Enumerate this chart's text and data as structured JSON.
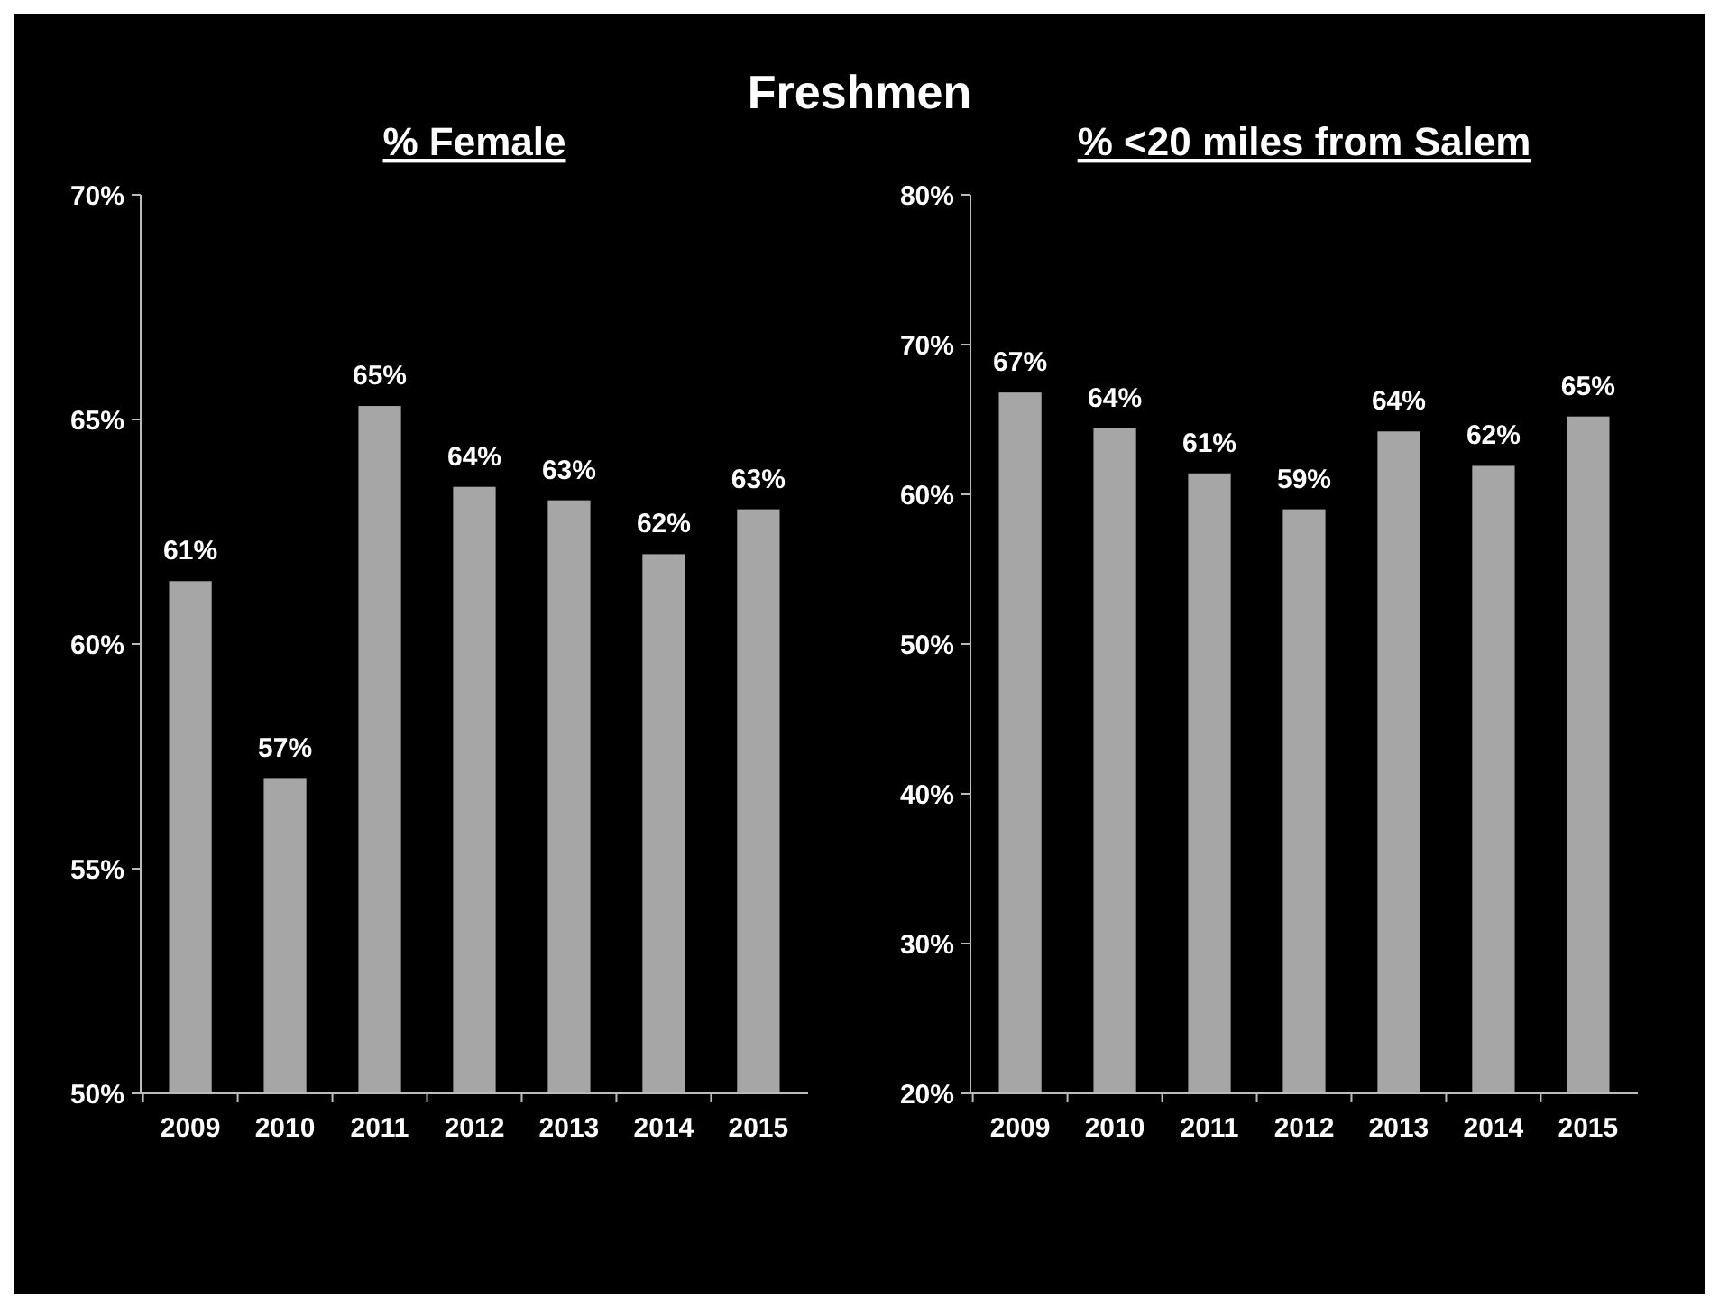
{
  "chart_data": [
    {
      "type": "other",
      "title": "Freshmen"
    },
    {
      "type": "bar",
      "title": "% Female",
      "categories": [
        "2009",
        "2010",
        "2011",
        "2012",
        "2013",
        "2014",
        "2015"
      ],
      "values": [
        61.4,
        57.0,
        65.3,
        63.5,
        63.2,
        62.0,
        63.0
      ],
      "value_labels": [
        "61%",
        "57%",
        "65%",
        "64%",
        "63%",
        "62%",
        "63%"
      ],
      "color": "#a6a6a6",
      "ylim": [
        50,
        70
      ],
      "yticks": [
        {
          "value": 50,
          "label": "50%"
        },
        {
          "value": 55,
          "label": "55%"
        },
        {
          "value": 60,
          "label": "60%"
        },
        {
          "value": 65,
          "label": "65%"
        },
        {
          "value": 70,
          "label": "70%"
        }
      ]
    },
    {
      "type": "bar",
      "title": "% <20 miles from Salem",
      "categories": [
        "2009",
        "2010",
        "2011",
        "2012",
        "2013",
        "2014",
        "2015"
      ],
      "values": [
        66.8,
        64.4,
        61.4,
        59.0,
        64.2,
        61.9,
        65.2
      ],
      "value_labels": [
        "67%",
        "64%",
        "61%",
        "59%",
        "64%",
        "62%",
        "65%"
      ],
      "color": "#a6a6a6",
      "ylim": [
        20,
        80
      ],
      "yticks": [
        {
          "value": 20,
          "label": "20%"
        },
        {
          "value": 30,
          "label": "30%"
        },
        {
          "value": 40,
          "label": "40%"
        },
        {
          "value": 50,
          "label": "50%"
        },
        {
          "value": 60,
          "label": "60%"
        },
        {
          "value": 70,
          "label": "70%"
        },
        {
          "value": 80,
          "label": "80%"
        }
      ]
    }
  ]
}
